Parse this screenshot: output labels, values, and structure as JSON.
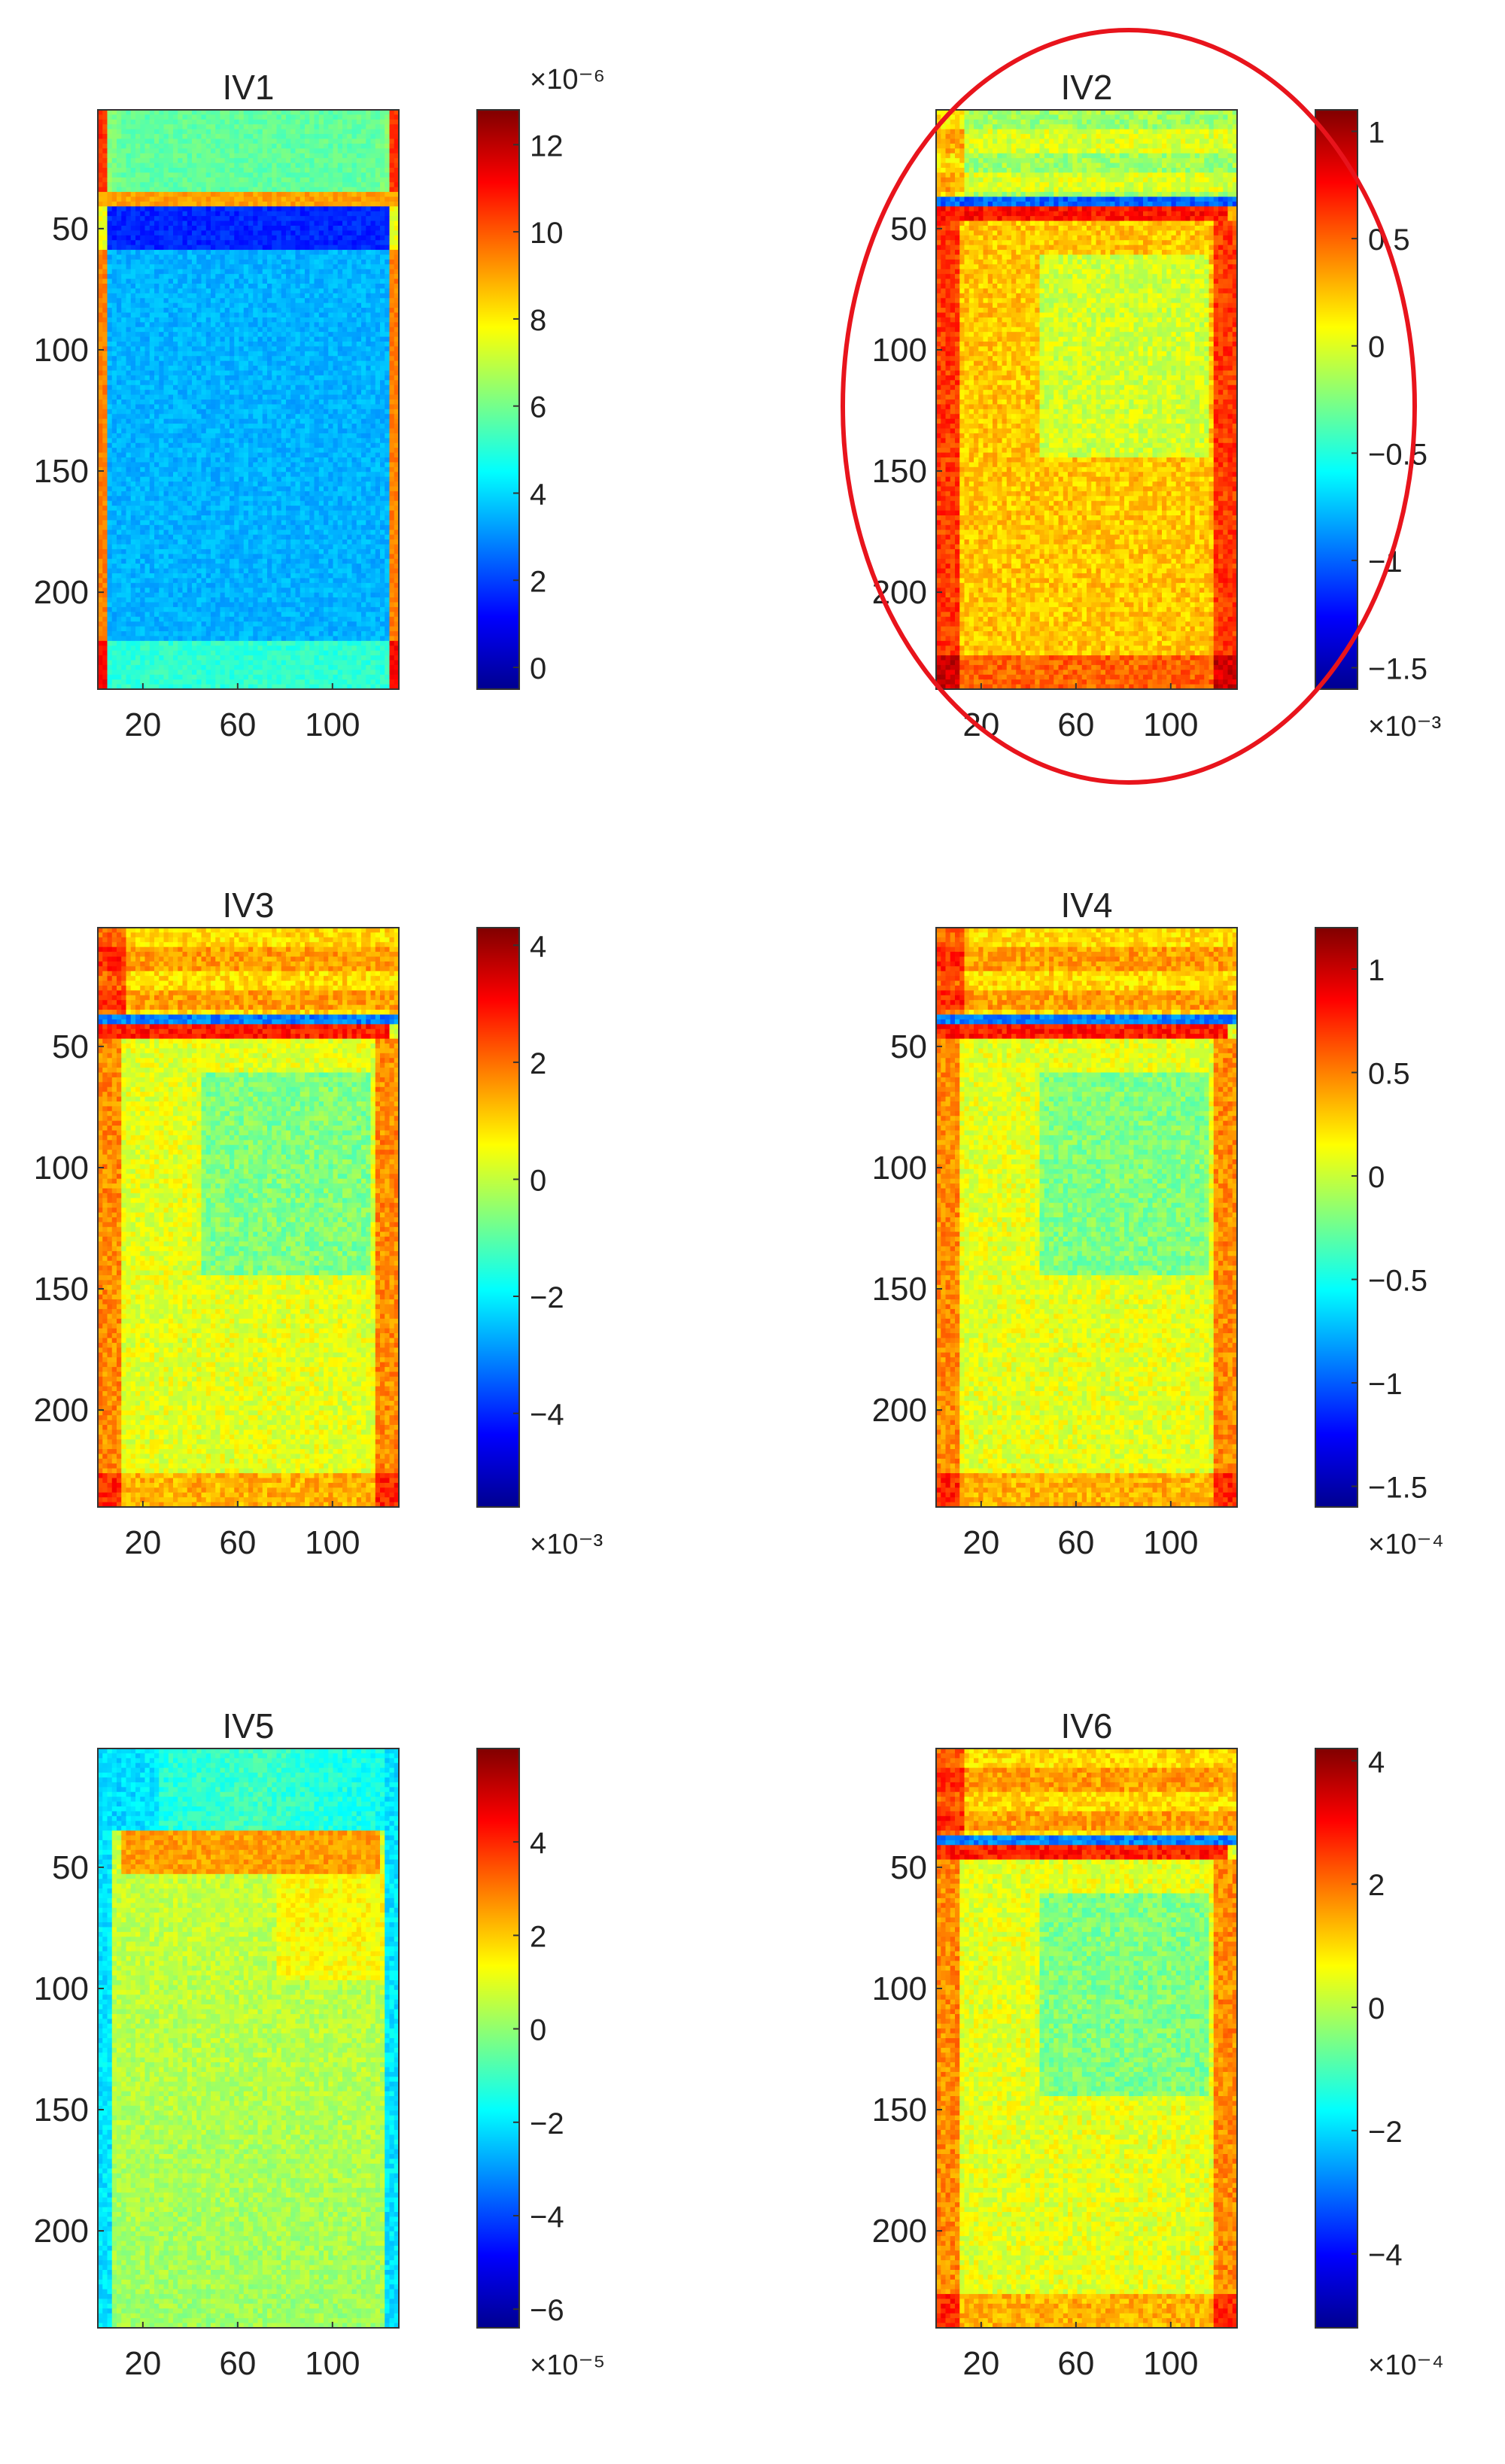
{
  "colormap": [
    "#00008f",
    "#0000ff",
    "#0080ff",
    "#00ffff",
    "#80ff80",
    "#ffff00",
    "#ff8000",
    "#ff0000",
    "#800000"
  ],
  "highlight": {
    "color": "#e8141c",
    "panel": "IV2"
  },
  "chart_data": [
    {
      "type": "heatmap",
      "title": "IV1",
      "xlabel": "",
      "ylabel": "",
      "x_ticks": [
        "20",
        "60",
        "100"
      ],
      "y_ticks": [
        "50",
        "100",
        "150",
        "200"
      ],
      "xlim": [
        1,
        128
      ],
      "ylim": [
        1,
        240
      ],
      "colorbar": {
        "ticks": [
          "0",
          "2",
          "4",
          "6",
          "8",
          "10",
          "12"
        ],
        "range": [
          -0.5,
          12.8
        ],
        "exponent": "×10⁻⁶",
        "exponent_position": "top"
      },
      "regions": [
        {
          "name": "upper",
          "rows": [
            1,
            60
          ],
          "level": 0.47
        },
        {
          "name": "interface",
          "rows": [
            55,
            62
          ],
          "level": 0.72
        },
        {
          "name": "cell",
          "rows": [
            62,
            240
          ],
          "level": 0.3
        },
        {
          "name": "edges",
          "level": 0.78
        }
      ]
    },
    {
      "type": "heatmap",
      "title": "IV2",
      "xlabel": "",
      "ylabel": "",
      "x_ticks": [
        "20",
        "60",
        "100"
      ],
      "y_ticks": [
        "50",
        "100",
        "150",
        "200"
      ],
      "xlim": [
        1,
        128
      ],
      "ylim": [
        1,
        240
      ],
      "colorbar": {
        "ticks": [
          "1",
          "0.5",
          "0",
          "-0.5",
          "-1",
          "-1.5"
        ],
        "range": [
          -1.6,
          1.1
        ],
        "exponent": "×10⁻³",
        "exponent_position": "bottom"
      },
      "regions": [
        {
          "name": "upper",
          "rows": [
            1,
            55
          ],
          "level": 0.55
        },
        {
          "name": "interface",
          "rows": [
            55,
            60
          ],
          "level": 0.22
        },
        {
          "name": "cell",
          "rows": [
            60,
            240
          ],
          "level": 0.68
        },
        {
          "name": "top-band",
          "rows": [
            60,
            68
          ],
          "level": 0.86
        }
      ]
    },
    {
      "type": "heatmap",
      "title": "IV3",
      "xlabel": "",
      "ylabel": "",
      "x_ticks": [
        "20",
        "60",
        "100"
      ],
      "y_ticks": [
        "50",
        "100",
        "150",
        "200"
      ],
      "xlim": [
        1,
        128
      ],
      "ylim": [
        1,
        240
      ],
      "colorbar": {
        "ticks": [
          "4",
          "2",
          "0",
          "-2",
          "-4"
        ],
        "range": [
          -5.6,
          4.3
        ],
        "exponent": "×10⁻³",
        "exponent_position": "bottom"
      },
      "regions": [
        {
          "name": "upper",
          "rows": [
            1,
            55
          ],
          "level": 0.68
        },
        {
          "name": "interface",
          "rows": [
            55,
            60
          ],
          "level": 0.25
        },
        {
          "name": "cell",
          "rows": [
            60,
            240
          ],
          "level": 0.6
        },
        {
          "name": "top-band",
          "rows": [
            60,
            68
          ],
          "level": 0.85
        }
      ]
    },
    {
      "type": "heatmap",
      "title": "IV4",
      "xlabel": "",
      "ylabel": "",
      "x_ticks": [
        "20",
        "60",
        "100"
      ],
      "y_ticks": [
        "50",
        "100",
        "150",
        "200"
      ],
      "xlim": [
        1,
        128
      ],
      "ylim": [
        1,
        240
      ],
      "colorbar": {
        "ticks": [
          "1",
          "0.5",
          "0",
          "-0.5",
          "-1",
          "-1.5"
        ],
        "range": [
          -1.6,
          1.2
        ],
        "exponent": "×10⁻⁴",
        "exponent_position": "bottom"
      },
      "regions": [
        {
          "name": "upper",
          "rows": [
            1,
            55
          ],
          "level": 0.68
        },
        {
          "name": "interface",
          "rows": [
            55,
            60
          ],
          "level": 0.25
        },
        {
          "name": "cell",
          "rows": [
            60,
            240
          ],
          "level": 0.6
        },
        {
          "name": "top-band",
          "rows": [
            60,
            68
          ],
          "level": 0.85
        }
      ]
    },
    {
      "type": "heatmap",
      "title": "IV5",
      "xlabel": "",
      "ylabel": "",
      "x_ticks": [
        "20",
        "60",
        "100"
      ],
      "y_ticks": [
        "50",
        "100",
        "150",
        "200"
      ],
      "xlim": [
        1,
        128
      ],
      "ylim": [
        1,
        240
      ],
      "colorbar": {
        "ticks": [
          "4",
          "2",
          "0",
          "-2",
          "-4",
          "-6"
        ],
        "range": [
          -6.4,
          6
        ],
        "exponent": "×10⁻⁵",
        "exponent_position": "bottom"
      },
      "regions": [
        {
          "name": "upper",
          "rows": [
            1,
            55
          ],
          "level": 0.38
        },
        {
          "name": "cell",
          "rows": [
            55,
            240
          ],
          "level": 0.58
        },
        {
          "name": "hot-band",
          "rows": [
            62,
            80
          ],
          "level": 0.72
        },
        {
          "name": "edges",
          "level": 0.35
        }
      ]
    },
    {
      "type": "heatmap",
      "title": "IV6",
      "xlabel": "",
      "ylabel": "",
      "x_ticks": [
        "20",
        "60",
        "100"
      ],
      "y_ticks": [
        "50",
        "100",
        "150",
        "200"
      ],
      "xlim": [
        1,
        128
      ],
      "ylim": [
        1,
        240
      ],
      "colorbar": {
        "ticks": [
          "4",
          "2",
          "0",
          "-2",
          "-4"
        ],
        "range": [
          -5.2,
          4.2
        ],
        "exponent": "×10⁻⁴",
        "exponent_position": "bottom"
      },
      "regions": [
        {
          "name": "upper",
          "rows": [
            1,
            55
          ],
          "level": 0.68
        },
        {
          "name": "interface",
          "rows": [
            55,
            60
          ],
          "level": 0.25
        },
        {
          "name": "cell",
          "rows": [
            60,
            240
          ],
          "level": 0.6
        },
        {
          "name": "top-band",
          "rows": [
            60,
            68
          ],
          "level": 0.85
        }
      ]
    }
  ]
}
